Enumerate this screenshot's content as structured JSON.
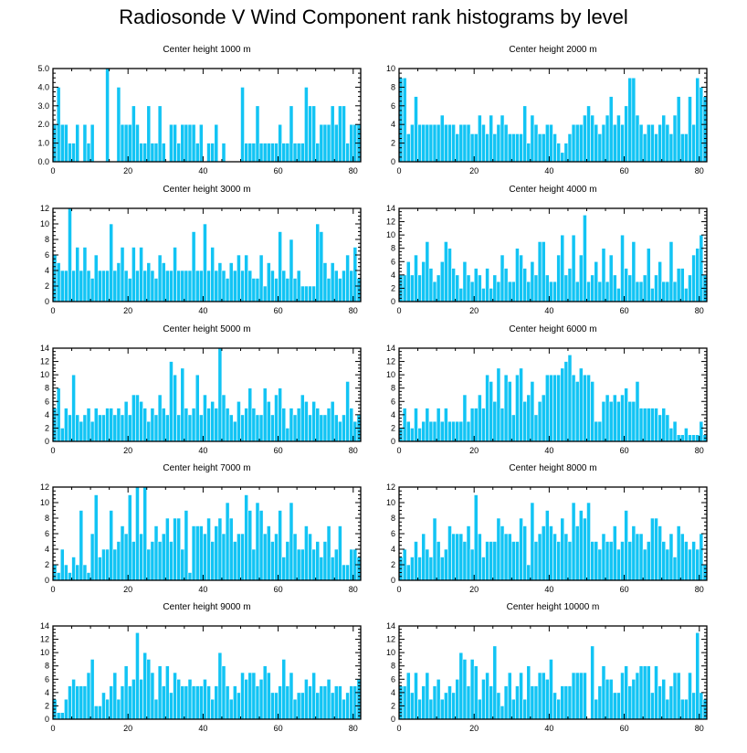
{
  "title": "Radiosonde V Wind Component rank histograms by level",
  "colors": {
    "bar": "#12c4f4",
    "frame": "#000000"
  },
  "chart_data": [
    {
      "type": "bar",
      "title": "Center height 1000 m",
      "ylim": [
        0,
        5
      ],
      "yticks": [
        0,
        1,
        2,
        3,
        4,
        5
      ],
      "ytick_labels": [
        "0.0",
        "1.0",
        "2.0",
        "3.0",
        "4.0",
        "5.0"
      ],
      "xlim": [
        0,
        82
      ],
      "xticks": [
        0,
        20,
        40,
        60,
        80
      ],
      "xtick_labels": [
        "0",
        "20",
        "40",
        "60",
        "80"
      ],
      "values": [
        2,
        4,
        2,
        2,
        1,
        1,
        2,
        0,
        2,
        1,
        2,
        0,
        0,
        0,
        5,
        0,
        0,
        4,
        2,
        2,
        2,
        3,
        2,
        1,
        1,
        3,
        1,
        1,
        3,
        1,
        0,
        2,
        2,
        1,
        2,
        2,
        2,
        2,
        1,
        2,
        0,
        1,
        1,
        2,
        0,
        1,
        0,
        0,
        0,
        0,
        4,
        1,
        1,
        1,
        3,
        1,
        1,
        1,
        1,
        1,
        2,
        1,
        1,
        3,
        1,
        1,
        1,
        4,
        3,
        3,
        1,
        2,
        2,
        2,
        3,
        2,
        3,
        3,
        1,
        2,
        2,
        2
      ]
    },
    {
      "type": "bar",
      "title": "Center height 2000 m",
      "ylim": [
        0,
        10
      ],
      "yticks": [
        0,
        2,
        4,
        6,
        8,
        10
      ],
      "ytick_labels": [
        "0",
        "2",
        "4",
        "6",
        "8",
        "10"
      ],
      "xlim": [
        0,
        82
      ],
      "xticks": [
        0,
        20,
        40,
        60,
        80
      ],
      "xtick_labels": [
        "0",
        "20",
        "40",
        "60",
        "80"
      ],
      "values": [
        9,
        9,
        3,
        4,
        7,
        4,
        4,
        4,
        4,
        4,
        4,
        5,
        4,
        4,
        4,
        3,
        4,
        4,
        4,
        3,
        3,
        5,
        4,
        3,
        5,
        3,
        4,
        5,
        4,
        3,
        3,
        3,
        3,
        6,
        2,
        5,
        4,
        3,
        3,
        4,
        4,
        3,
        2,
        1,
        2,
        3,
        4,
        4,
        4,
        5,
        6,
        5,
        4,
        3,
        4,
        5,
        7,
        4,
        5,
        4,
        6,
        9,
        9,
        5,
        4,
        3,
        4,
        4,
        3,
        4,
        5,
        4,
        3,
        5,
        7,
        3,
        3,
        7,
        4,
        9,
        8,
        7
      ]
    },
    {
      "type": "bar",
      "title": "Center height 3000 m",
      "ylim": [
        0,
        12
      ],
      "yticks": [
        0,
        2,
        4,
        6,
        8,
        10,
        12
      ],
      "ytick_labels": [
        "0",
        "2",
        "4",
        "6",
        "8",
        "10",
        "12"
      ],
      "xlim": [
        0,
        82
      ],
      "xticks": [
        0,
        20,
        40,
        60,
        80
      ],
      "xtick_labels": [
        "0",
        "20",
        "40",
        "60",
        "80"
      ],
      "values": [
        6,
        5,
        4,
        4,
        12,
        4,
        7,
        4,
        7,
        4,
        3,
        6,
        4,
        4,
        4,
        10,
        4,
        5,
        7,
        4,
        3,
        7,
        4,
        7,
        4,
        5,
        4,
        3,
        6,
        5,
        4,
        4,
        7,
        4,
        4,
        4,
        4,
        9,
        4,
        4,
        10,
        4,
        7,
        4,
        5,
        4,
        3,
        5,
        4,
        6,
        4,
        6,
        4,
        3,
        3,
        6,
        2,
        5,
        4,
        3,
        9,
        4,
        3,
        8,
        3,
        4,
        2,
        2,
        2,
        2,
        10,
        9,
        5,
        3,
        5,
        4,
        3,
        4,
        6,
        4,
        7,
        3
      ]
    },
    {
      "type": "bar",
      "title": "Center height 4000 m",
      "ylim": [
        0,
        14
      ],
      "yticks": [
        0,
        2,
        4,
        6,
        8,
        10,
        12,
        14
      ],
      "ytick_labels": [
        "0",
        "2",
        "4",
        "6",
        "8",
        "10",
        "12",
        "14"
      ],
      "xlim": [
        0,
        82
      ],
      "xticks": [
        0,
        20,
        40,
        60,
        80
      ],
      "xtick_labels": [
        "0",
        "20",
        "40",
        "60",
        "80"
      ],
      "values": [
        4,
        4,
        6,
        4,
        7,
        4,
        6,
        9,
        5,
        3,
        4,
        6,
        9,
        8,
        5,
        4,
        2,
        6,
        4,
        3,
        5,
        4,
        2,
        5,
        2,
        4,
        3,
        7,
        5,
        3,
        3,
        8,
        7,
        5,
        3,
        6,
        4,
        9,
        9,
        4,
        3,
        3,
        7,
        10,
        4,
        5,
        10,
        3,
        7,
        13,
        3,
        4,
        6,
        3,
        8,
        3,
        7,
        4,
        2,
        10,
        5,
        4,
        9,
        3,
        3,
        4,
        8,
        2,
        4,
        6,
        3,
        3,
        9,
        3,
        5,
        5,
        2,
        4,
        7,
        8,
        10,
        4
      ]
    },
    {
      "type": "bar",
      "title": "Center height 5000 m",
      "ylim": [
        0,
        14
      ],
      "yticks": [
        0,
        2,
        4,
        6,
        8,
        10,
        12,
        14
      ],
      "ytick_labels": [
        "0",
        "2",
        "4",
        "6",
        "8",
        "10",
        "12",
        "14"
      ],
      "xlim": [
        0,
        82
      ],
      "xticks": [
        0,
        20,
        40,
        60,
        80
      ],
      "xtick_labels": [
        "0",
        "20",
        "40",
        "60",
        "80"
      ],
      "values": [
        5,
        8,
        2,
        5,
        4,
        10,
        4,
        3,
        4,
        5,
        3,
        5,
        4,
        4,
        5,
        5,
        4,
        5,
        4,
        6,
        4,
        7,
        7,
        6,
        5,
        3,
        5,
        4,
        7,
        5,
        4,
        12,
        10,
        4,
        11,
        5,
        4,
        5,
        10,
        4,
        7,
        5,
        6,
        5,
        14,
        7,
        5,
        4,
        3,
        6,
        4,
        5,
        8,
        5,
        4,
        4,
        8,
        6,
        4,
        7,
        8,
        5,
        2,
        5,
        4,
        5,
        7,
        6,
        4,
        6,
        5,
        4,
        4,
        5,
        6,
        4,
        3,
        4,
        9,
        5,
        3,
        4
      ]
    },
    {
      "type": "bar",
      "title": "Center height 6000 m",
      "ylim": [
        0,
        14
      ],
      "yticks": [
        0,
        2,
        4,
        6,
        8,
        10,
        12,
        14
      ],
      "ytick_labels": [
        "0",
        "2",
        "4",
        "6",
        "8",
        "10",
        "12",
        "14"
      ],
      "xlim": [
        0,
        82
      ],
      "xticks": [
        0,
        20,
        40,
        60,
        80
      ],
      "xtick_labels": [
        "0",
        "20",
        "40",
        "60",
        "80"
      ],
      "values": [
        2,
        5,
        3,
        2,
        5,
        2,
        3,
        5,
        3,
        3,
        5,
        3,
        5,
        3,
        3,
        3,
        3,
        7,
        3,
        5,
        5,
        7,
        5,
        10,
        9,
        6,
        11,
        5,
        10,
        9,
        4,
        10,
        11,
        6,
        7,
        9,
        4,
        6,
        7,
        10,
        10,
        10,
        10,
        11,
        12,
        13,
        10,
        9,
        11,
        10,
        10,
        9,
        3,
        3,
        6,
        7,
        6,
        7,
        6,
        7,
        8,
        6,
        6,
        9,
        5,
        5,
        5,
        5,
        5,
        4,
        5,
        4,
        2,
        3,
        1,
        1,
        2,
        1,
        1,
        1,
        3,
        1
      ]
    },
    {
      "type": "bar",
      "title": "Center height 7000 m",
      "ylim": [
        0,
        12
      ],
      "yticks": [
        0,
        2,
        4,
        6,
        8,
        10,
        12
      ],
      "ytick_labels": [
        "0",
        "2",
        "4",
        "6",
        "8",
        "10",
        "12"
      ],
      "xlim": [
        0,
        82
      ],
      "xticks": [
        0,
        20,
        40,
        60,
        80
      ],
      "xtick_labels": [
        "0",
        "20",
        "40",
        "60",
        "80"
      ],
      "values": [
        2,
        1,
        4,
        2,
        1,
        3,
        2,
        9,
        2,
        1,
        6,
        11,
        3,
        4,
        4,
        9,
        4,
        5,
        7,
        6,
        11,
        5,
        12,
        6,
        12,
        4,
        5,
        7,
        5,
        6,
        8,
        5,
        8,
        8,
        4,
        9,
        1,
        7,
        7,
        7,
        6,
        8,
        5,
        7,
        8,
        6,
        10,
        8,
        5,
        6,
        6,
        11,
        9,
        4,
        10,
        9,
        6,
        7,
        5,
        6,
        9,
        3,
        5,
        10,
        6,
        4,
        4,
        7,
        6,
        4,
        5,
        3,
        5,
        7,
        3,
        4,
        7,
        2,
        2,
        4,
        4,
        3
      ]
    },
    {
      "type": "bar",
      "title": "Center height 8000 m",
      "ylim": [
        0,
        12
      ],
      "yticks": [
        0,
        2,
        4,
        6,
        8,
        10,
        12
      ],
      "ytick_labels": [
        "0",
        "2",
        "4",
        "6",
        "8",
        "10",
        "12"
      ],
      "xlim": [
        0,
        82
      ],
      "xticks": [
        0,
        20,
        40,
        60,
        80
      ],
      "xtick_labels": [
        "0",
        "20",
        "40",
        "60",
        "80"
      ],
      "values": [
        3,
        4,
        2,
        3,
        5,
        3,
        6,
        4,
        3,
        8,
        5,
        3,
        4,
        7,
        6,
        6,
        6,
        5,
        7,
        4,
        11,
        6,
        3,
        5,
        5,
        5,
        8,
        7,
        6,
        6,
        5,
        5,
        8,
        7,
        2,
        10,
        5,
        6,
        7,
        9,
        7,
        6,
        5,
        8,
        6,
        5,
        10,
        7,
        9,
        8,
        10,
        5,
        5,
        4,
        6,
        5,
        5,
        7,
        4,
        5,
        9,
        5,
        7,
        6,
        6,
        4,
        5,
        8,
        8,
        7,
        5,
        4,
        6,
        3,
        7,
        6,
        5,
        4,
        5,
        4,
        6,
        2
      ]
    },
    {
      "type": "bar",
      "title": "Center height 9000 m",
      "ylim": [
        0,
        14
      ],
      "yticks": [
        0,
        2,
        4,
        6,
        8,
        10,
        12,
        14
      ],
      "ytick_labels": [
        "0",
        "2",
        "4",
        "6",
        "8",
        "10",
        "12",
        "14"
      ],
      "xlim": [
        0,
        82
      ],
      "xticks": [
        0,
        20,
        40,
        60,
        80
      ],
      "xtick_labels": [
        "0",
        "20",
        "40",
        "60",
        "80"
      ],
      "values": [
        3,
        1,
        1,
        3,
        5,
        6,
        5,
        5,
        5,
        7,
        9,
        2,
        2,
        4,
        3,
        5,
        7,
        3,
        5,
        8,
        5,
        6,
        13,
        6,
        10,
        9,
        7,
        3,
        8,
        5,
        8,
        4,
        7,
        6,
        5,
        5,
        6,
        5,
        5,
        5,
        6,
        5,
        3,
        5,
        10,
        8,
        5,
        3,
        5,
        4,
        7,
        6,
        7,
        7,
        5,
        6,
        8,
        7,
        4,
        4,
        5,
        9,
        5,
        7,
        3,
        4,
        4,
        6,
        5,
        7,
        4,
        5,
        5,
        6,
        4,
        5,
        5,
        3,
        4,
        5,
        5,
        6
      ]
    },
    {
      "type": "bar",
      "title": "Center height 10000 m",
      "ylim": [
        0,
        14
      ],
      "yticks": [
        0,
        2,
        4,
        6,
        8,
        10,
        12,
        14
      ],
      "ytick_labels": [
        "0",
        "2",
        "4",
        "6",
        "8",
        "10",
        "12",
        "14"
      ],
      "xlim": [
        0,
        82
      ],
      "xticks": [
        0,
        20,
        40,
        60,
        80
      ],
      "xtick_labels": [
        "0",
        "20",
        "40",
        "60",
        "80"
      ],
      "values": [
        5,
        5,
        7,
        4,
        7,
        3,
        5,
        7,
        3,
        5,
        6,
        3,
        4,
        5,
        4,
        6,
        10,
        9,
        5,
        9,
        8,
        3,
        6,
        7,
        5,
        11,
        4,
        2,
        5,
        7,
        3,
        5,
        7,
        3,
        8,
        5,
        5,
        7,
        7,
        6,
        9,
        4,
        3,
        5,
        5,
        5,
        7,
        7,
        7,
        7,
        0,
        11,
        3,
        5,
        8,
        6,
        6,
        4,
        4,
        7,
        8,
        5,
        6,
        7,
        8,
        8,
        8,
        4,
        8,
        5,
        6,
        3,
        5,
        7,
        7,
        3,
        3,
        7,
        4,
        13,
        4,
        3
      ]
    }
  ]
}
